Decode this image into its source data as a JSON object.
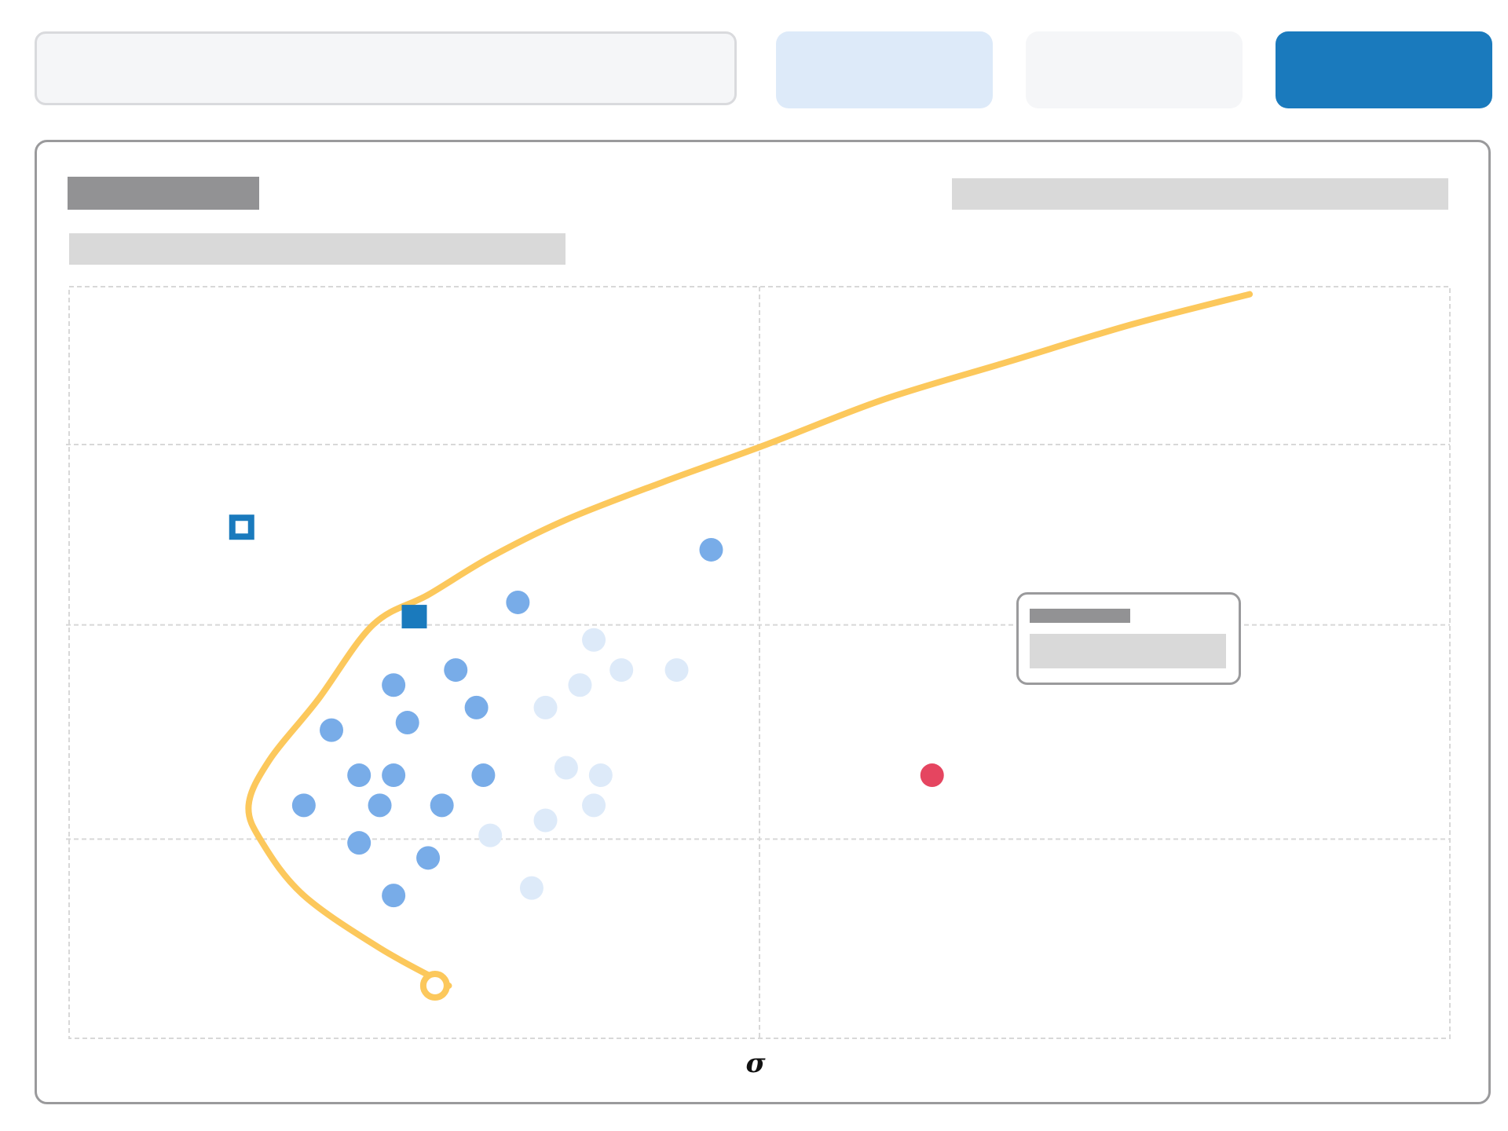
{
  "chart_data": {
    "type": "scatter",
    "title": "",
    "xlabel": "σ",
    "ylabel": "",
    "xlim": [
      0,
      2
    ],
    "ylim": [
      0,
      1
    ],
    "grid": true,
    "series": [
      {
        "role": "frontier-curve",
        "color": "#fcc85c",
        "x": [
          0.55,
          0.45,
          0.34,
          0.28,
          0.26,
          0.29,
          0.36,
          0.44,
          0.52,
          0.61,
          0.72,
          0.86,
          1.01,
          1.18,
          1.36,
          1.54,
          1.71
        ],
        "y": [
          0.07,
          0.12,
          0.19,
          0.26,
          0.31,
          0.37,
          0.45,
          0.55,
          0.59,
          0.64,
          0.69,
          0.74,
          0.79,
          0.85,
          0.9,
          0.95,
          0.99
        ]
      },
      {
        "role": "points-strong",
        "color": "#78ace8",
        "x": [
          0.93,
          0.65,
          0.47,
          0.56,
          0.59,
          0.38,
          0.49,
          0.42,
          0.47,
          0.6,
          0.34,
          0.45,
          0.54,
          0.42,
          0.52,
          0.47
        ],
        "y": [
          0.65,
          0.58,
          0.47,
          0.49,
          0.44,
          0.41,
          0.42,
          0.35,
          0.35,
          0.35,
          0.31,
          0.31,
          0.31,
          0.26,
          0.24,
          0.19
        ]
      },
      {
        "role": "points-faint",
        "color": "#ddeaf9",
        "x": [
          0.76,
          0.74,
          0.8,
          0.88,
          0.69,
          0.72,
          0.77,
          0.69,
          0.76,
          0.61,
          0.67
        ],
        "y": [
          0.53,
          0.47,
          0.49,
          0.49,
          0.44,
          0.36,
          0.35,
          0.29,
          0.31,
          0.27,
          0.2
        ]
      },
      {
        "role": "highlight-point",
        "color": "#e54560",
        "x": [
          1.25
        ],
        "y": [
          0.35
        ]
      }
    ],
    "markers": [
      {
        "role": "square-marker",
        "color": "#1a7abd",
        "x": 0.5,
        "y": 0.56
      },
      {
        "role": "hollow-square-marker",
        "color": "#1a7abd",
        "x": 0.25,
        "y": 0.68
      },
      {
        "role": "curve-endpoint",
        "color": "#fcc85c",
        "x": 0.53,
        "y": 0.07
      }
    ],
    "gridline_color": "#d8d8d8"
  }
}
